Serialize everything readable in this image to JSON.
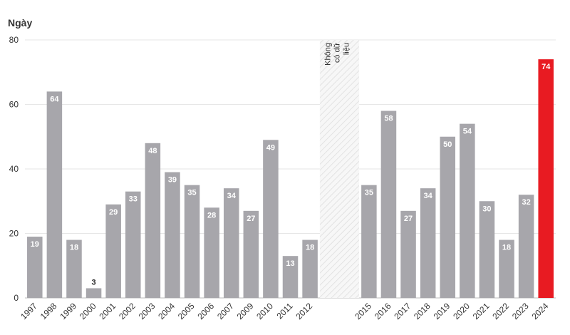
{
  "chart_data": {
    "type": "bar",
    "ylabel": "Ngày",
    "ylim": [
      0,
      80
    ],
    "yticks": [
      0,
      20,
      40,
      60,
      80
    ],
    "grid": true,
    "categories": [
      "1997",
      "1998",
      "1999",
      "2000",
      "2001",
      "2002",
      "2003",
      "2004",
      "2005",
      "2006",
      "2007",
      "2009",
      "2010",
      "2011",
      "2012",
      "2015",
      "2016",
      "2017",
      "2018",
      "2019",
      "2020",
      "2021",
      "2022",
      "2023",
      "2024"
    ],
    "values": [
      19,
      64,
      18,
      3,
      29,
      33,
      48,
      39,
      35,
      28,
      34,
      27,
      49,
      13,
      18,
      35,
      58,
      27,
      34,
      50,
      54,
      30,
      18,
      32,
      74
    ],
    "gap_after": "2012",
    "gap_slots": 2,
    "no_data_label_lines": [
      "Không",
      "có dữ",
      "liệu"
    ],
    "highlight_category": "2024",
    "colors": {
      "bar": "#a7a6ab",
      "highlight": "#e81b22",
      "grid": "#e6e6e6",
      "hatch": "#d9d9d9"
    }
  }
}
